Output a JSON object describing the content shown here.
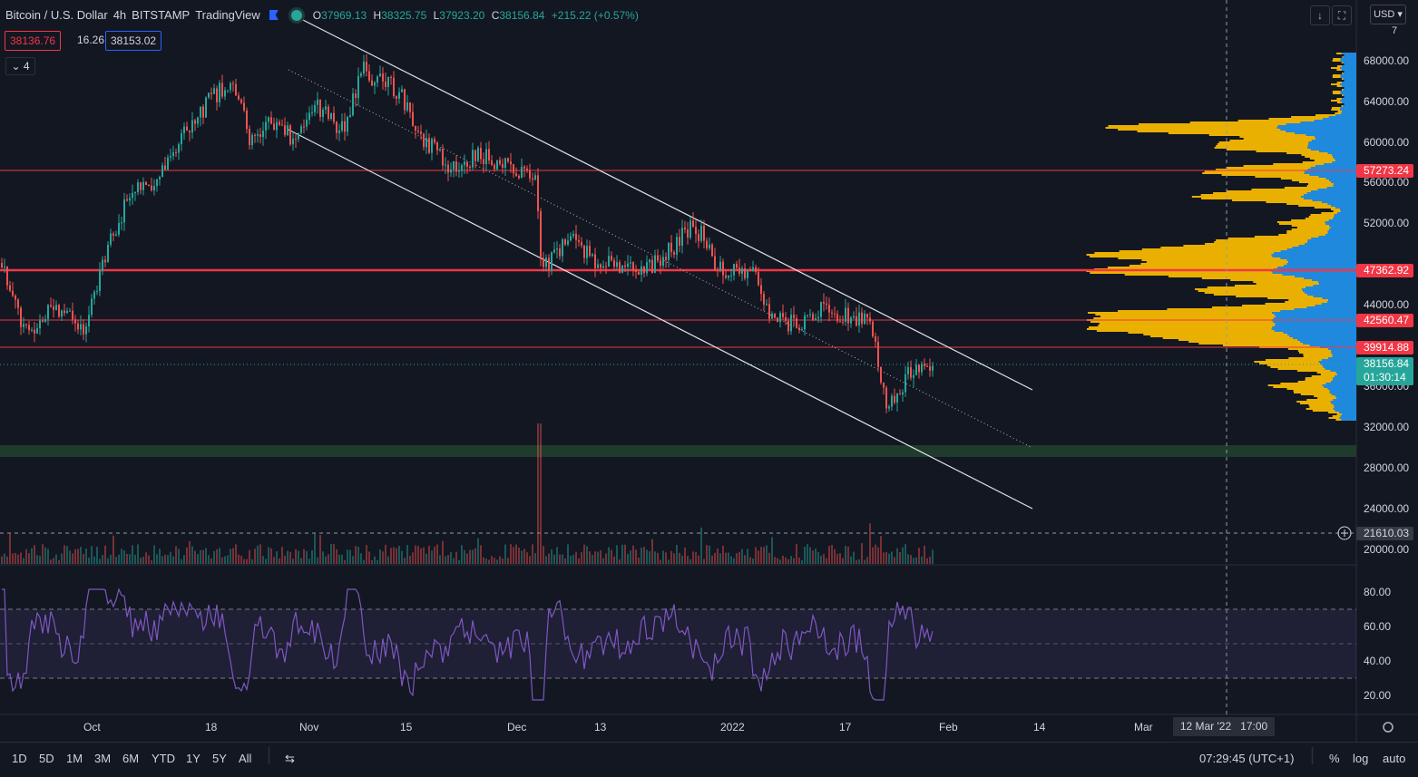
{
  "header": {
    "symbol": "Bitcoin / U.S. Dollar",
    "interval": "4h",
    "exchange": "BITSTAMP",
    "source": "TradingView",
    "ohlc": {
      "o_label": "O",
      "o": "37969.13",
      "h_label": "H",
      "h": "38325.75",
      "l_label": "L",
      "l": "37923.20",
      "c_label": "C",
      "c": "38156.84",
      "change": "+215.22 (+0.57%)"
    },
    "bid": "38136.76",
    "spread": "16.26",
    "ask": "38153.02",
    "indicators_count": "4"
  },
  "toolbar": {
    "currency": "USD",
    "top_axis_value": "7"
  },
  "price_axis": {
    "ticks": [
      "68000.00",
      "64000.00",
      "60000.00",
      "56000.00",
      "52000.00",
      "44000.00",
      "36000.00",
      "32000.00",
      "28000.00",
      "24000.00",
      "20000.00"
    ],
    "labels": [
      {
        "value": "57273.24",
        "color": "#f23645"
      },
      {
        "value": "47362.92",
        "color": "#f23645"
      },
      {
        "value": "42560.47",
        "color": "#f23645"
      },
      {
        "value": "39914.88",
        "color": "#f23645"
      }
    ],
    "last_price": "38156.84",
    "countdown": "01:30:14",
    "crosshair_value": "21610.03"
  },
  "rsi_axis": {
    "ticks": [
      "80.00",
      "60.00",
      "40.00",
      "20.00"
    ]
  },
  "time_axis": {
    "ticks": [
      "Oct",
      "18",
      "Nov",
      "15",
      "Dec",
      "13",
      "2022",
      "17",
      "Feb",
      "14",
      "Mar"
    ],
    "crosshair_date": "12 Mar '22",
    "crosshair_time": "17:00"
  },
  "bottom_bar": {
    "ranges": [
      "1D",
      "5D",
      "1M",
      "3M",
      "6M",
      "YTD",
      "1Y",
      "5Y",
      "All"
    ],
    "clock": "07:29:45 (UTC+1)",
    "percent": "%",
    "log": "log",
    "auto": "auto"
  },
  "colors": {
    "background": "#131722",
    "up": "#26a69a",
    "down": "#ef5350",
    "hline": "#f23645",
    "rsi": "#7e57c2",
    "vp_yellow": "#f5b800",
    "vp_blue": "#2196f3"
  }
}
